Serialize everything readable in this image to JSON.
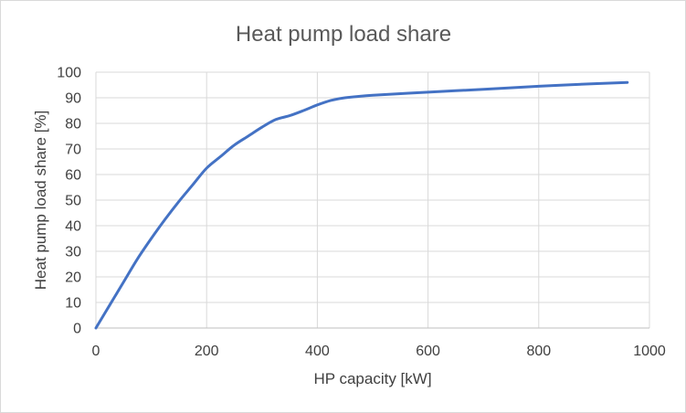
{
  "chart_data": {
    "type": "line",
    "title": "Heat pump load share",
    "xlabel": "HP capacity [kW]",
    "ylabel": "Heat pump load share [%]",
    "xlim": [
      0,
      1000
    ],
    "ylim": [
      0,
      100
    ],
    "xticks": [
      0,
      200,
      400,
      600,
      800,
      1000
    ],
    "yticks": [
      0,
      10,
      20,
      30,
      40,
      50,
      60,
      70,
      80,
      90,
      100
    ],
    "grid": true,
    "legend": "none",
    "series": [
      {
        "name": "Heat pump load share",
        "color": "#4472c4",
        "x": [
          0,
          25,
          50,
          75,
          100,
          125,
          150,
          175,
          200,
          225,
          250,
          275,
          300,
          325,
          350,
          375,
          400,
          425,
          450,
          500,
          600,
          700,
          800,
          900,
          960
        ],
        "y": [
          0,
          9,
          18,
          27,
          35,
          42.5,
          49.5,
          56,
          62.5,
          67,
          71.5,
          75,
          78.5,
          81.5,
          83,
          85,
          87.2,
          89,
          90,
          91,
          92.2,
          93.3,
          94.5,
          95.5,
          96
        ]
      }
    ]
  }
}
